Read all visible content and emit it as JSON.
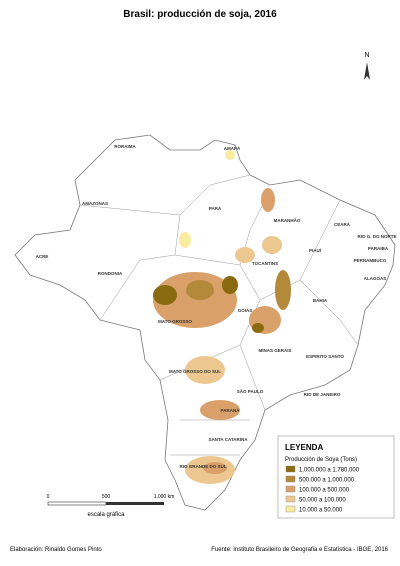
{
  "title": "Brasil: producción de soja, 2016",
  "north": "N",
  "states": [
    "RORAIMA",
    "AMAPÁ",
    "AMAZONAS",
    "PARÁ",
    "MARANHÃO",
    "CEARÁ",
    "RIO G. DO NORTE",
    "PARAIBA",
    "PERNAMBUCO",
    "PIAUÍ",
    "ALAGOAS",
    "ACRE",
    "RONDONIA",
    "TOCANTINS",
    "BAHIA",
    "MATO GROSSO",
    "GOIÁS",
    "MINAS GERAIS",
    "ESPIRITO SANTO",
    "MATO GROSSO DO SUL",
    "SÃO PAULO",
    "RIO DE JANEIRO",
    "PARANÁ",
    "SANTA CATARINA",
    "RIO GRANDE DO SUL"
  ],
  "legend": {
    "title": "LEYENDA",
    "subtitle": "Producción de Soya (Tons)",
    "items": [
      {
        "label": "1.000.000 a 1.780.000",
        "color": "#8a6a10"
      },
      {
        "label": "500.000 a 1.000.000",
        "color": "#b48a3a"
      },
      {
        "label": "100.000 a   500.000",
        "color": "#d9a06a"
      },
      {
        "label": "50.000 a   100.000",
        "color": "#ecc890"
      },
      {
        "label": "10.000 a    50.000",
        "color": "#f8eca0"
      }
    ]
  },
  "scale": {
    "labels": [
      "0",
      "500",
      "1.000 km"
    ],
    "caption": "escala gráfica"
  },
  "credits": {
    "author": "Elaboración: Rinaldo Gomes Pinto",
    "source": "Fuente: Instituto Brasileiro de Geografia e Estatística - IBGE, 2016"
  }
}
